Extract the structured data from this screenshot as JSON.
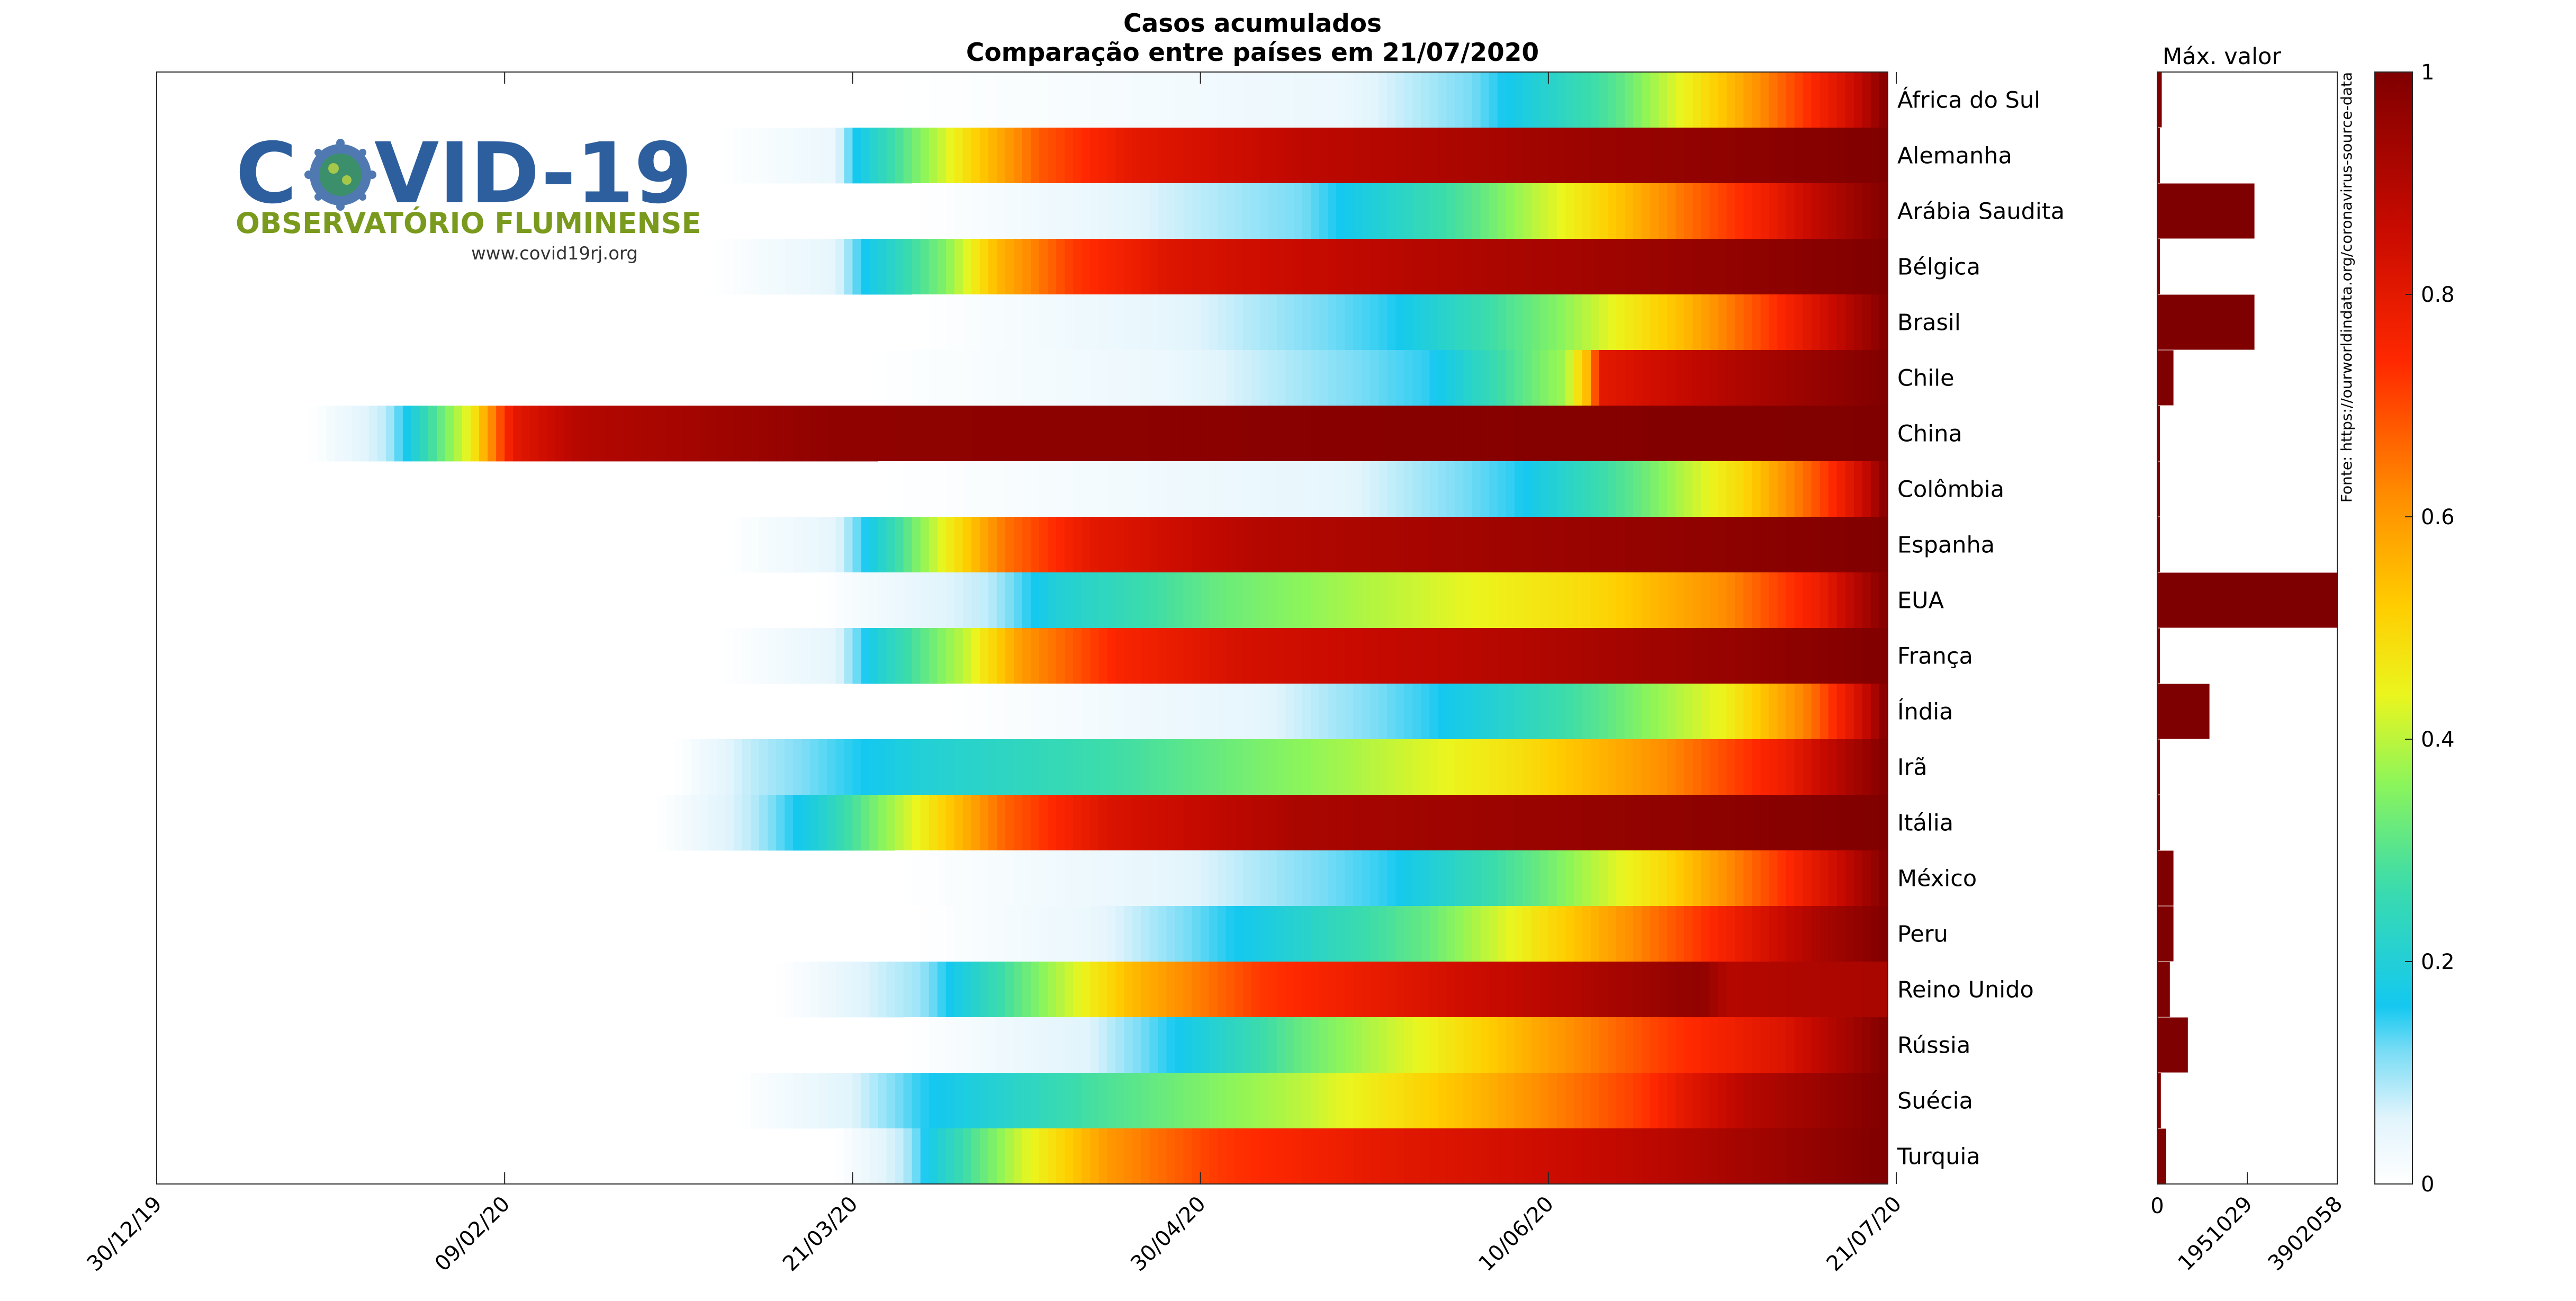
{
  "chart_data": {
    "type": "heatmap",
    "title": "Casos acumulados",
    "subtitle": "Comparação entre países em 21/07/2020",
    "x_tick_labels": [
      "30/12/19",
      "09/02/20",
      "21/03/20",
      "30/04/20",
      "10/06/20",
      "21/07/20"
    ],
    "x_range_days": [
      0,
      204
    ],
    "countries": [
      {
        "name": "África do Sul",
        "start": 87,
        "stops": [
          [
            87,
            0
          ],
          [
            140,
            0.04
          ],
          [
            155,
            0.12
          ],
          [
            172,
            0.3
          ],
          [
            183,
            0.5
          ],
          [
            193,
            0.7
          ],
          [
            200,
            0.85
          ],
          [
            204,
            1
          ]
        ],
        "max_bar": 0.025
      },
      {
        "name": "Alemanha",
        "start": 66,
        "stops": [
          [
            66,
            0
          ],
          [
            80,
            0.04
          ],
          [
            82,
            0.15
          ],
          [
            88,
            0.3
          ],
          [
            96,
            0.5
          ],
          [
            104,
            0.68
          ],
          [
            115,
            0.8
          ],
          [
            135,
            0.88
          ],
          [
            170,
            0.95
          ],
          [
            204,
            1
          ]
        ],
        "max_bar": 0.005
      },
      {
        "name": "Arábia Saudita",
        "start": 89,
        "stops": [
          [
            89,
            0
          ],
          [
            110,
            0.04
          ],
          [
            135,
            0.12
          ],
          [
            155,
            0.3
          ],
          [
            170,
            0.5
          ],
          [
            180,
            0.65
          ],
          [
            190,
            0.78
          ],
          [
            197,
            0.9
          ],
          [
            204,
            1
          ]
        ],
        "max_bar": 0.54
      },
      {
        "name": "Bélgica",
        "start": 65,
        "stops": [
          [
            65,
            0
          ],
          [
            80,
            0.05
          ],
          [
            83,
            0.15
          ],
          [
            93,
            0.35
          ],
          [
            99,
            0.55
          ],
          [
            108,
            0.72
          ],
          [
            120,
            0.82
          ],
          [
            150,
            0.9
          ],
          [
            204,
            1
          ]
        ],
        "max_bar": 0.005
      },
      {
        "name": "Brasil",
        "start": 89,
        "stops": [
          [
            89,
            0
          ],
          [
            120,
            0.05
          ],
          [
            145,
            0.15
          ],
          [
            165,
            0.35
          ],
          [
            180,
            0.55
          ],
          [
            190,
            0.72
          ],
          [
            198,
            0.87
          ],
          [
            204,
            1
          ]
        ],
        "max_bar": 0.54
      },
      {
        "name": "Chile",
        "start": 83,
        "stops": [
          [
            83,
            0
          ],
          [
            120,
            0.04
          ],
          [
            150,
            0.15
          ],
          [
            166,
            0.38
          ],
          [
            169,
            0.58
          ],
          [
            170,
            0.8
          ],
          [
            185,
            0.9
          ],
          [
            204,
            1
          ]
        ],
        "max_bar": 0.09
      },
      {
        "name": "China",
        "start": 18,
        "stops": [
          [
            18,
            0
          ],
          [
            27,
            0.08
          ],
          [
            29,
            0.15
          ],
          [
            37,
            0.45
          ],
          [
            42,
            0.8
          ],
          [
            50,
            0.9
          ],
          [
            80,
            0.97
          ],
          [
            204,
            1
          ]
        ],
        "max_bar": 0.01
      },
      {
        "name": "Colômbia",
        "start": 85,
        "stops": [
          [
            85,
            0
          ],
          [
            140,
            0.05
          ],
          [
            160,
            0.15
          ],
          [
            175,
            0.32
          ],
          [
            187,
            0.5
          ],
          [
            196,
            0.7
          ],
          [
            201,
            0.85
          ],
          [
            204,
            1
          ]
        ],
        "max_bar": 0.01
      },
      {
        "name": "Espanha",
        "start": 67,
        "stops": [
          [
            67,
            0
          ],
          [
            80,
            0.05
          ],
          [
            85,
            0.2
          ],
          [
            93,
            0.45
          ],
          [
            100,
            0.65
          ],
          [
            110,
            0.8
          ],
          [
            130,
            0.9
          ],
          [
            204,
            1
          ]
        ],
        "max_bar": 0.01
      },
      {
        "name": "EUA",
        "start": 78,
        "stops": [
          [
            78,
            0
          ],
          [
            98,
            0.08
          ],
          [
            106,
            0.2
          ],
          [
            125,
            0.32
          ],
          [
            150,
            0.42
          ],
          [
            170,
            0.5
          ],
          [
            185,
            0.62
          ],
          [
            196,
            0.78
          ],
          [
            204,
            1
          ]
        ],
        "max_bar": 1.0
      },
      {
        "name": "França",
        "start": 66,
        "stops": [
          [
            66,
            0
          ],
          [
            80,
            0.05
          ],
          [
            85,
            0.2
          ],
          [
            95,
            0.4
          ],
          [
            102,
            0.6
          ],
          [
            113,
            0.75
          ],
          [
            127,
            0.83
          ],
          [
            160,
            0.9
          ],
          [
            204,
            1
          ]
        ],
        "max_bar": 0.01
      },
      {
        "name": "Índia",
        "start": 93,
        "stops": [
          [
            93,
            0
          ],
          [
            130,
            0.05
          ],
          [
            150,
            0.15
          ],
          [
            170,
            0.3
          ],
          [
            185,
            0.45
          ],
          [
            195,
            0.65
          ],
          [
            201,
            0.85
          ],
          [
            204,
            1
          ]
        ],
        "max_bar": 0.29
      },
      {
        "name": "Irã",
        "start": 61,
        "stops": [
          [
            61,
            0
          ],
          [
            70,
            0.08
          ],
          [
            90,
            0.2
          ],
          [
            115,
            0.28
          ],
          [
            140,
            0.38
          ],
          [
            160,
            0.48
          ],
          [
            178,
            0.62
          ],
          [
            192,
            0.78
          ],
          [
            204,
            1
          ]
        ],
        "max_bar": 0.015
      },
      {
        "name": "Itália",
        "start": 59,
        "stops": [
          [
            59,
            0
          ],
          [
            70,
            0.08
          ],
          [
            78,
            0.2
          ],
          [
            90,
            0.45
          ],
          [
            100,
            0.67
          ],
          [
            112,
            0.82
          ],
          [
            135,
            0.92
          ],
          [
            204,
            1
          ]
        ],
        "max_bar": 0.01
      },
      {
        "name": "México",
        "start": 87,
        "stops": [
          [
            87,
            0
          ],
          [
            120,
            0.05
          ],
          [
            145,
            0.15
          ],
          [
            163,
            0.32
          ],
          [
            178,
            0.5
          ],
          [
            190,
            0.7
          ],
          [
            198,
            0.85
          ],
          [
            204,
            1
          ]
        ],
        "max_bar": 0.09
      },
      {
        "name": "Peru",
        "start": 89,
        "stops": [
          [
            89,
            0
          ],
          [
            110,
            0.04
          ],
          [
            130,
            0.18
          ],
          [
            150,
            0.32
          ],
          [
            163,
            0.48
          ],
          [
            174,
            0.62
          ],
          [
            186,
            0.78
          ],
          [
            196,
            0.92
          ],
          [
            204,
            1
          ]
        ],
        "max_bar": 0.09
      },
      {
        "name": "Reino Unido",
        "start": 73,
        "stops": [
          [
            73,
            0
          ],
          [
            90,
            0.1
          ],
          [
            104,
            0.35
          ],
          [
            115,
            0.55
          ],
          [
            130,
            0.72
          ],
          [
            155,
            0.85
          ],
          [
            182,
            0.97
          ],
          [
            185,
            0.9
          ],
          [
            204,
            0.92
          ]
        ],
        "max_bar": 0.07
      },
      {
        "name": "Rússia",
        "start": 88,
        "stops": [
          [
            88,
            0
          ],
          [
            110,
            0.06
          ],
          [
            122,
            0.18
          ],
          [
            135,
            0.32
          ],
          [
            150,
            0.45
          ],
          [
            163,
            0.58
          ],
          [
            178,
            0.72
          ],
          [
            192,
            0.82
          ],
          [
            204,
            1
          ]
        ],
        "max_bar": 0.17
      },
      {
        "name": "Suécia",
        "start": 68,
        "stops": [
          [
            68,
            0
          ],
          [
            82,
            0.06
          ],
          [
            90,
            0.15
          ],
          [
            110,
            0.28
          ],
          [
            135,
            0.4
          ],
          [
            155,
            0.55
          ],
          [
            175,
            0.72
          ],
          [
            180,
            0.8
          ],
          [
            188,
            0.9
          ],
          [
            204,
            1
          ]
        ],
        "max_bar": 0.02
      },
      {
        "name": "Turquia",
        "start": 80,
        "stops": [
          [
            80,
            0
          ],
          [
            88,
            0.08
          ],
          [
            92,
            0.2
          ],
          [
            102,
            0.42
          ],
          [
            112,
            0.6
          ],
          [
            125,
            0.72
          ],
          [
            145,
            0.8
          ],
          [
            175,
            0.88
          ],
          [
            204,
            1
          ]
        ],
        "max_bar": 0.05
      }
    ],
    "max_panel": {
      "title": "Máx. valor",
      "tick_labels": [
        "0",
        "1951029",
        "3902058"
      ],
      "max": 3902058
    },
    "colorbar": {
      "colormap": "white-cyan-jet",
      "tick_labels": [
        "0",
        "0.2",
        "0.4",
        "0.6",
        "0.8",
        "1"
      ],
      "ticks": [
        0,
        0.2,
        0.4,
        0.6,
        0.8,
        1
      ]
    },
    "source": "Fonte: https://ourworldindata.org/coronavirus-source-data"
  },
  "logo": {
    "name": "COVID-19",
    "subtitle": "OBSERVATÓRIO FLUMINENSE",
    "url": "www.covid19rj.org"
  }
}
